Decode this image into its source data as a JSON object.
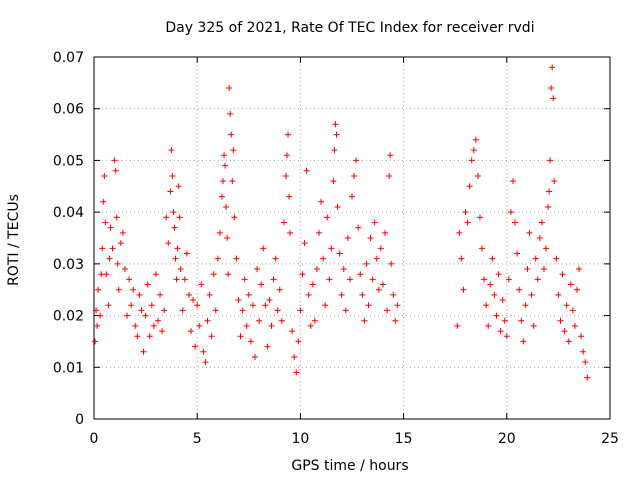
{
  "chart_data": {
    "type": "scatter",
    "title": "Day 325 of 2021, Rate Of TEC Index for receiver rvdi",
    "xlabel": "GPS time / hours",
    "ylabel": "ROTI / TECUs",
    "xlim": [
      0,
      25
    ],
    "ylim": [
      0,
      0.07
    ],
    "xticks": [
      "0",
      "5",
      "10",
      "15",
      "20",
      "25"
    ],
    "yticks": [
      "0",
      "0.01",
      "0.02",
      "0.03",
      "0.04",
      "0.05",
      "0.06",
      "0.07"
    ],
    "grid": true,
    "marker": "+",
    "color": "#ff0000",
    "series": [
      {
        "points": [
          [
            0.05,
            0.015
          ],
          [
            0.1,
            0.021
          ],
          [
            0.15,
            0.018
          ],
          [
            0.2,
            0.025
          ],
          [
            0.3,
            0.02
          ],
          [
            0.35,
            0.028
          ],
          [
            0.4,
            0.033
          ],
          [
            0.45,
            0.042
          ],
          [
            0.5,
            0.047
          ],
          [
            0.55,
            0.038
          ],
          [
            0.6,
            0.028
          ],
          [
            0.7,
            0.022
          ],
          [
            0.75,
            0.031
          ],
          [
            0.8,
            0.037
          ],
          [
            0.9,
            0.033
          ],
          [
            1.0,
            0.05
          ],
          [
            1.05,
            0.048
          ],
          [
            1.1,
            0.039
          ],
          [
            1.15,
            0.03
          ],
          [
            1.2,
            0.025
          ],
          [
            1.3,
            0.034
          ],
          [
            1.4,
            0.036
          ],
          [
            1.5,
            0.029
          ],
          [
            1.6,
            0.02
          ],
          [
            1.7,
            0.027
          ],
          [
            1.8,
            0.022
          ],
          [
            1.9,
            0.025
          ],
          [
            2.0,
            0.018
          ],
          [
            2.1,
            0.016
          ],
          [
            2.2,
            0.024
          ],
          [
            2.3,
            0.021
          ],
          [
            2.4,
            0.013
          ],
          [
            2.5,
            0.02
          ],
          [
            2.6,
            0.026
          ],
          [
            2.7,
            0.016
          ],
          [
            2.8,
            0.022
          ],
          [
            2.9,
            0.018
          ],
          [
            3.0,
            0.028
          ],
          [
            3.1,
            0.019
          ],
          [
            3.2,
            0.024
          ],
          [
            3.3,
            0.017
          ],
          [
            3.4,
            0.021
          ],
          [
            3.5,
            0.039
          ],
          [
            3.6,
            0.034
          ],
          [
            3.7,
            0.044
          ],
          [
            3.75,
            0.052
          ],
          [
            3.8,
            0.047
          ],
          [
            3.85,
            0.04
          ],
          [
            3.9,
            0.037
          ],
          [
            3.95,
            0.031
          ],
          [
            4.0,
            0.027
          ],
          [
            4.05,
            0.033
          ],
          [
            4.1,
            0.045
          ],
          [
            4.15,
            0.039
          ],
          [
            4.2,
            0.029
          ],
          [
            4.3,
            0.021
          ],
          [
            4.4,
            0.027
          ],
          [
            4.5,
            0.032
          ],
          [
            4.6,
            0.024
          ],
          [
            4.7,
            0.017
          ],
          [
            4.8,
            0.023
          ],
          [
            4.9,
            0.014
          ],
          [
            5.0,
            0.022
          ],
          [
            5.1,
            0.018
          ],
          [
            5.2,
            0.026
          ],
          [
            5.3,
            0.013
          ],
          [
            5.4,
            0.011
          ],
          [
            5.5,
            0.019
          ],
          [
            5.6,
            0.024
          ],
          [
            5.7,
            0.016
          ],
          [
            5.8,
            0.028
          ],
          [
            5.9,
            0.021
          ],
          [
            6.0,
            0.031
          ],
          [
            6.1,
            0.036
          ],
          [
            6.2,
            0.043
          ],
          [
            6.25,
            0.046
          ],
          [
            6.3,
            0.051
          ],
          [
            6.35,
            0.049
          ],
          [
            6.4,
            0.041
          ],
          [
            6.45,
            0.035
          ],
          [
            6.5,
            0.028
          ],
          [
            6.55,
            0.064
          ],
          [
            6.6,
            0.059
          ],
          [
            6.65,
            0.055
          ],
          [
            6.7,
            0.046
          ],
          [
            6.75,
            0.052
          ],
          [
            6.8,
            0.039
          ],
          [
            6.9,
            0.031
          ],
          [
            7.0,
            0.023
          ],
          [
            7.1,
            0.016
          ],
          [
            7.2,
            0.021
          ],
          [
            7.3,
            0.027
          ],
          [
            7.4,
            0.018
          ],
          [
            7.5,
            0.024
          ],
          [
            7.6,
            0.015
          ],
          [
            7.7,
            0.022
          ],
          [
            7.8,
            0.012
          ],
          [
            7.9,
            0.029
          ],
          [
            8.0,
            0.019
          ],
          [
            8.1,
            0.026
          ],
          [
            8.2,
            0.033
          ],
          [
            8.3,
            0.022
          ],
          [
            8.4,
            0.014
          ],
          [
            8.5,
            0.023
          ],
          [
            8.6,
            0.018
          ],
          [
            8.7,
            0.027
          ],
          [
            8.8,
            0.031
          ],
          [
            8.9,
            0.021
          ],
          [
            9.0,
            0.025
          ],
          [
            9.1,
            0.019
          ],
          [
            9.2,
            0.038
          ],
          [
            9.3,
            0.047
          ],
          [
            9.35,
            0.051
          ],
          [
            9.4,
            0.055
          ],
          [
            9.45,
            0.043
          ],
          [
            9.5,
            0.036
          ],
          [
            9.6,
            0.017
          ],
          [
            9.7,
            0.012
          ],
          [
            9.8,
            0.009
          ],
          [
            9.9,
            0.015
          ],
          [
            10.0,
            0.021
          ],
          [
            10.1,
            0.028
          ],
          [
            10.2,
            0.034
          ],
          [
            10.3,
            0.048
          ],
          [
            10.4,
            0.024
          ],
          [
            10.5,
            0.018
          ],
          [
            10.6,
            0.026
          ],
          [
            10.7,
            0.019
          ],
          [
            10.8,
            0.029
          ],
          [
            10.9,
            0.036
          ],
          [
            11.0,
            0.042
          ],
          [
            11.1,
            0.031
          ],
          [
            11.2,
            0.022
          ],
          [
            11.3,
            0.039
          ],
          [
            11.4,
            0.027
          ],
          [
            11.5,
            0.033
          ],
          [
            11.6,
            0.046
          ],
          [
            11.65,
            0.052
          ],
          [
            11.7,
            0.057
          ],
          [
            11.75,
            0.055
          ],
          [
            11.8,
            0.041
          ],
          [
            11.9,
            0.032
          ],
          [
            12.0,
            0.024
          ],
          [
            12.1,
            0.029
          ],
          [
            12.2,
            0.021
          ],
          [
            12.3,
            0.035
          ],
          [
            12.4,
            0.027
          ],
          [
            12.5,
            0.043
          ],
          [
            12.6,
            0.047
          ],
          [
            12.7,
            0.05
          ],
          [
            12.8,
            0.037
          ],
          [
            12.9,
            0.028
          ],
          [
            13.0,
            0.024
          ],
          [
            13.1,
            0.019
          ],
          [
            13.2,
            0.03
          ],
          [
            13.3,
            0.022
          ],
          [
            13.4,
            0.035
          ],
          [
            13.5,
            0.027
          ],
          [
            13.6,
            0.038
          ],
          [
            13.7,
            0.031
          ],
          [
            13.8,
            0.025
          ],
          [
            13.9,
            0.033
          ],
          [
            14.0,
            0.026
          ],
          [
            14.1,
            0.036
          ],
          [
            14.2,
            0.021
          ],
          [
            14.3,
            0.047
          ],
          [
            14.35,
            0.051
          ],
          [
            14.4,
            0.03
          ],
          [
            14.5,
            0.024
          ],
          [
            14.6,
            0.019
          ],
          [
            14.7,
            0.022
          ],
          [
            17.6,
            0.018
          ],
          [
            17.7,
            0.036
          ],
          [
            17.8,
            0.031
          ],
          [
            17.9,
            0.025
          ],
          [
            18.0,
            0.04
          ],
          [
            18.1,
            0.038
          ],
          [
            18.2,
            0.045
          ],
          [
            18.3,
            0.05
          ],
          [
            18.4,
            0.052
          ],
          [
            18.5,
            0.054
          ],
          [
            18.6,
            0.047
          ],
          [
            18.7,
            0.039
          ],
          [
            18.8,
            0.033
          ],
          [
            18.9,
            0.027
          ],
          [
            19.0,
            0.022
          ],
          [
            19.1,
            0.018
          ],
          [
            19.2,
            0.026
          ],
          [
            19.3,
            0.031
          ],
          [
            19.4,
            0.024
          ],
          [
            19.5,
            0.02
          ],
          [
            19.6,
            0.028
          ],
          [
            19.7,
            0.017
          ],
          [
            19.8,
            0.023
          ],
          [
            19.9,
            0.019
          ],
          [
            20.0,
            0.016
          ],
          [
            20.1,
            0.027
          ],
          [
            20.2,
            0.04
          ],
          [
            20.3,
            0.046
          ],
          [
            20.4,
            0.038
          ],
          [
            20.5,
            0.032
          ],
          [
            20.6,
            0.025
          ],
          [
            20.7,
            0.019
          ],
          [
            20.8,
            0.015
          ],
          [
            20.9,
            0.022
          ],
          [
            21.0,
            0.029
          ],
          [
            21.1,
            0.036
          ],
          [
            21.2,
            0.024
          ],
          [
            21.3,
            0.018
          ],
          [
            21.4,
            0.031
          ],
          [
            21.5,
            0.027
          ],
          [
            21.6,
            0.035
          ],
          [
            21.7,
            0.038
          ],
          [
            21.8,
            0.029
          ],
          [
            21.9,
            0.033
          ],
          [
            22.0,
            0.041
          ],
          [
            22.05,
            0.044
          ],
          [
            22.1,
            0.05
          ],
          [
            22.15,
            0.064
          ],
          [
            22.2,
            0.068
          ],
          [
            22.25,
            0.062
          ],
          [
            22.3,
            0.046
          ],
          [
            22.4,
            0.031
          ],
          [
            22.5,
            0.024
          ],
          [
            22.6,
            0.019
          ],
          [
            22.7,
            0.028
          ],
          [
            22.8,
            0.017
          ],
          [
            22.9,
            0.022
          ],
          [
            23.0,
            0.015
          ],
          [
            23.1,
            0.026
          ],
          [
            23.2,
            0.021
          ],
          [
            23.3,
            0.018
          ],
          [
            23.4,
            0.025
          ],
          [
            23.5,
            0.029
          ],
          [
            23.6,
            0.016
          ],
          [
            23.7,
            0.013
          ],
          [
            23.8,
            0.011
          ],
          [
            23.9,
            0.008
          ]
        ]
      }
    ]
  }
}
